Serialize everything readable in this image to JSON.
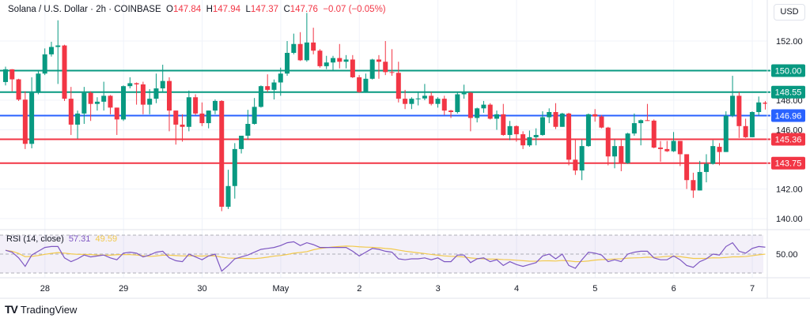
{
  "header": {
    "symbol": "Solana / U.S. Dollar · 2h · COINBASE",
    "open_label": "O",
    "open": "147.84",
    "high_label": "H",
    "high": "147.94",
    "low_label": "L",
    "low": "147.37",
    "close_label": "C",
    "close": "147.76",
    "change": "−0.07 (−0.05%)"
  },
  "currency_button": "USD",
  "rsi_legend": {
    "title": "RSI (14, close)",
    "rsi_value": "57.31",
    "ma_value": "49.59"
  },
  "branding": "TradingView",
  "colors": {
    "up": "#089981",
    "down": "#F23645",
    "resistance": "#089981",
    "support": "#F23645",
    "pivot": "#2962FF",
    "rsi": "#7E57C2",
    "rsi_ma": "#F2C94C"
  },
  "chart_data": {
    "type": "candlestick",
    "title": "Solana / U.S. Dollar · 2h · COINBASE",
    "y_ticks": [
      "152.00",
      "148.00",
      "146.00",
      "142.00",
      "140.00"
    ],
    "y_tick_values": [
      152,
      148,
      146,
      142,
      140
    ],
    "ylim": [
      139.6,
      154.7
    ],
    "x_ticks": [
      {
        "label": "28",
        "candle": 4
      },
      {
        "label": "29",
        "candle": 16
      },
      {
        "label": "30",
        "candle": 28
      },
      {
        "label": "May",
        "candle": 40
      },
      {
        "label": "2",
        "candle": 52
      },
      {
        "label": "3",
        "candle": 64
      },
      {
        "label": "4",
        "candle": 76
      },
      {
        "label": "5",
        "candle": 88
      },
      {
        "label": "6",
        "candle": 100
      },
      {
        "label": "7",
        "candle": 112
      }
    ],
    "levels": [
      {
        "value": 150.0,
        "label": "150.00",
        "kind": "resistance"
      },
      {
        "value": 148.55,
        "label": "148.55",
        "kind": "resistance"
      },
      {
        "value": 146.96,
        "label": "146.96",
        "kind": "pivot"
      },
      {
        "value": 145.36,
        "label": "145.36",
        "kind": "support"
      },
      {
        "value": 143.75,
        "label": "143.75",
        "kind": "support"
      }
    ],
    "ohlc": [
      [
        149.23,
        150.27,
        149.0,
        150.09
      ],
      [
        150.09,
        150.1,
        148.6,
        149.41
      ],
      [
        149.41,
        149.45,
        147.95,
        148.04
      ],
      [
        148.04,
        148.6,
        144.7,
        145.05
      ],
      [
        145.05,
        149.55,
        144.75,
        148.5
      ],
      [
        148.5,
        150.0,
        148.4,
        149.8
      ],
      [
        149.8,
        151.5,
        149.7,
        151.1
      ],
      [
        151.1,
        151.95,
        150.95,
        151.6
      ],
      [
        151.6,
        153.4,
        149.1,
        151.7
      ],
      [
        151.7,
        151.75,
        147.95,
        148.1
      ],
      [
        148.1,
        148.9,
        145.65,
        146.35
      ],
      [
        146.35,
        147.3,
        145.4,
        147.1
      ],
      [
        147.1,
        148.9,
        146.4,
        148.5
      ],
      [
        148.5,
        148.6,
        146.6,
        147.75
      ],
      [
        147.75,
        148.2,
        147.3,
        147.9
      ],
      [
        147.9,
        149.25,
        147.3,
        148.3
      ],
      [
        148.3,
        148.35,
        147.05,
        147.5
      ],
      [
        147.5,
        147.5,
        145.65,
        146.7
      ],
      [
        146.7,
        149.0,
        146.6,
        148.95
      ],
      [
        148.95,
        149.55,
        148.8,
        149.15
      ],
      [
        149.15,
        149.2,
        147.7,
        149.07
      ],
      [
        149.07,
        149.25,
        147.05,
        147.7
      ],
      [
        147.7,
        148.75,
        147.05,
        148.1
      ],
      [
        148.1,
        149.8,
        147.8,
        148.8
      ],
      [
        148.8,
        150.4,
        148.55,
        149.3
      ],
      [
        149.3,
        149.55,
        145.9,
        147.3
      ],
      [
        147.3,
        147.3,
        145.0,
        146.35
      ],
      [
        146.35,
        147.05,
        145.2,
        146.2
      ],
      [
        146.2,
        148.65,
        145.9,
        148.2
      ],
      [
        148.2,
        148.4,
        147.0,
        147.1
      ],
      [
        147.1,
        147.85,
        146.25,
        146.45
      ],
      [
        146.45,
        147.3,
        146.1,
        147.3
      ],
      [
        147.3,
        148.05,
        147.05,
        147.95
      ],
      [
        147.95,
        148.0,
        140.5,
        140.8
      ],
      [
        140.8,
        143.3,
        140.65,
        142.2
      ],
      [
        142.2,
        145.1,
        141.35,
        144.7
      ],
      [
        144.7,
        145.6,
        144.4,
        145.6
      ],
      [
        145.6,
        147.35,
        145.35,
        146.4
      ],
      [
        146.4,
        148.15,
        146.35,
        147.55
      ],
      [
        147.55,
        149.0,
        147.5,
        148.95
      ],
      [
        148.95,
        149.75,
        148.55,
        148.7
      ],
      [
        148.7,
        149.4,
        148.05,
        149.2
      ],
      [
        149.2,
        150.2,
        148.3,
        149.8
      ],
      [
        149.8,
        152.0,
        149.65,
        151.2
      ],
      [
        151.2,
        152.5,
        151.1,
        151.8
      ],
      [
        151.8,
        152.6,
        150.65,
        150.7
      ],
      [
        150.7,
        153.9,
        150.6,
        151.9
      ],
      [
        151.9,
        152.9,
        151.1,
        151.35
      ],
      [
        151.35,
        151.45,
        150.2,
        150.3
      ],
      [
        150.3,
        151.0,
        150.1,
        150.55
      ],
      [
        150.55,
        151.0,
        149.95,
        150.85
      ],
      [
        150.85,
        151.8,
        150.15,
        150.6
      ],
      [
        150.6,
        151.05,
        150.15,
        150.75
      ],
      [
        150.75,
        151.05,
        149.5,
        149.55
      ],
      [
        149.55,
        149.7,
        148.5,
        148.55
      ],
      [
        148.55,
        149.8,
        148.5,
        149.45
      ],
      [
        149.45,
        150.8,
        149.4,
        150.75
      ],
      [
        150.75,
        151.05,
        149.45,
        150.6
      ],
      [
        150.6,
        152.0,
        149.7,
        149.9
      ],
      [
        149.9,
        151.45,
        149.65,
        149.85
      ],
      [
        149.85,
        150.6,
        147.85,
        148.1
      ],
      [
        148.1,
        148.7,
        147.4,
        147.75
      ],
      [
        147.75,
        148.2,
        147.4,
        148.1
      ],
      [
        148.1,
        148.55,
        147.65,
        148.12
      ],
      [
        148.12,
        149.1,
        148.0,
        148.3
      ],
      [
        148.3,
        148.55,
        147.65,
        147.75
      ],
      [
        147.75,
        148.2,
        147.5,
        148.1
      ],
      [
        148.1,
        148.3,
        147.0,
        147.3
      ],
      [
        147.3,
        147.35,
        146.8,
        147.2
      ],
      [
        147.2,
        148.55,
        147.1,
        148.4
      ],
      [
        148.4,
        149.05,
        148.1,
        148.5
      ],
      [
        148.5,
        148.55,
        145.9,
        146.8
      ],
      [
        146.8,
        147.5,
        146.5,
        147.45
      ],
      [
        147.45,
        147.95,
        147.15,
        147.7
      ],
      [
        147.7,
        147.8,
        146.7,
        146.75
      ],
      [
        146.75,
        147.3,
        146.0,
        147.05
      ],
      [
        147.05,
        147.75,
        145.6,
        145.65
      ],
      [
        145.65,
        146.6,
        145.3,
        146.25
      ],
      [
        146.25,
        146.3,
        145.2,
        145.7
      ],
      [
        145.7,
        145.9,
        144.7,
        144.95
      ],
      [
        144.95,
        145.95,
        144.85,
        145.5
      ],
      [
        145.5,
        146.1,
        144.95,
        145.65
      ],
      [
        145.65,
        147.25,
        145.6,
        146.85
      ],
      [
        146.85,
        147.45,
        146.45,
        147.2
      ],
      [
        147.2,
        147.8,
        146.05,
        146.2
      ],
      [
        146.2,
        147.15,
        146.2,
        147.1
      ],
      [
        147.1,
        147.15,
        143.6,
        143.98
      ],
      [
        143.98,
        145.35,
        142.95,
        143.25
      ],
      [
        143.25,
        145.35,
        142.6,
        144.9
      ],
      [
        144.9,
        147.1,
        144.85,
        147.05
      ],
      [
        147.05,
        147.4,
        146.55,
        146.9
      ],
      [
        146.9,
        147.0,
        146.1,
        146.15
      ],
      [
        146.15,
        146.2,
        143.6,
        144.2
      ],
      [
        144.2,
        145.35,
        143.4,
        144.9
      ],
      [
        144.9,
        145.4,
        143.2,
        143.75
      ],
      [
        143.75,
        145.8,
        143.7,
        145.75
      ],
      [
        145.75,
        147.1,
        145.6,
        146.45
      ],
      [
        146.45,
        146.7,
        144.95,
        146.65
      ],
      [
        146.65,
        147.75,
        146.6,
        146.62
      ],
      [
        146.62,
        146.7,
        144.75,
        144.8
      ],
      [
        144.8,
        145.25,
        143.85,
        144.7
      ],
      [
        144.7,
        145.25,
        144.5,
        144.55
      ],
      [
        144.55,
        145.85,
        144.5,
        145.25
      ],
      [
        145.25,
        145.25,
        143.55,
        144.35
      ],
      [
        144.35,
        144.35,
        142.0,
        142.6
      ],
      [
        142.6,
        143.1,
        141.4,
        141.9
      ],
      [
        141.9,
        143.9,
        141.9,
        143.15
      ],
      [
        143.15,
        144.35,
        142.45,
        143.7
      ],
      [
        143.7,
        145.3,
        143.65,
        144.9
      ],
      [
        144.85,
        145.1,
        143.6,
        144.5
      ],
      [
        144.5,
        147.25,
        144.5,
        146.95
      ],
      [
        146.95,
        149.65,
        146.85,
        148.3
      ],
      [
        148.3,
        148.55,
        145.45,
        146.25
      ],
      [
        146.25,
        146.75,
        145.45,
        145.5
      ],
      [
        145.5,
        147.25,
        145.5,
        147.2
      ],
      [
        147.2,
        148.25,
        146.95,
        147.85
      ],
      [
        147.84,
        147.94,
        147.37,
        147.76
      ]
    ],
    "rsi": {
      "period": 14,
      "y_tick": "50.00",
      "bands": [
        30,
        50,
        70
      ],
      "values": [
        54,
        52,
        46,
        37,
        49,
        53,
        57,
        58,
        58,
        46,
        42,
        45,
        49,
        47,
        48,
        49,
        46,
        44,
        51,
        52,
        51,
        47,
        49,
        52,
        53,
        46,
        43,
        42,
        50,
        47,
        44,
        48,
        50,
        32,
        38,
        45,
        47,
        49,
        52,
        55,
        56,
        57,
        59,
        62,
        63,
        59,
        62,
        60,
        57,
        57,
        57,
        57,
        57,
        53,
        48,
        52,
        56,
        55,
        53,
        52,
        45,
        44,
        45,
        45,
        46,
        44,
        46,
        42,
        42,
        49,
        49,
        41,
        45,
        46,
        42,
        44,
        38,
        42,
        39,
        37,
        39,
        41,
        48,
        50,
        45,
        50,
        38,
        35,
        44,
        52,
        51,
        49,
        42,
        44,
        42,
        50,
        52,
        53,
        53,
        46,
        44,
        44,
        48,
        44,
        38,
        36,
        42,
        45,
        50,
        49,
        58,
        62,
        53,
        51,
        56,
        58,
        57.31
      ]
    }
  }
}
